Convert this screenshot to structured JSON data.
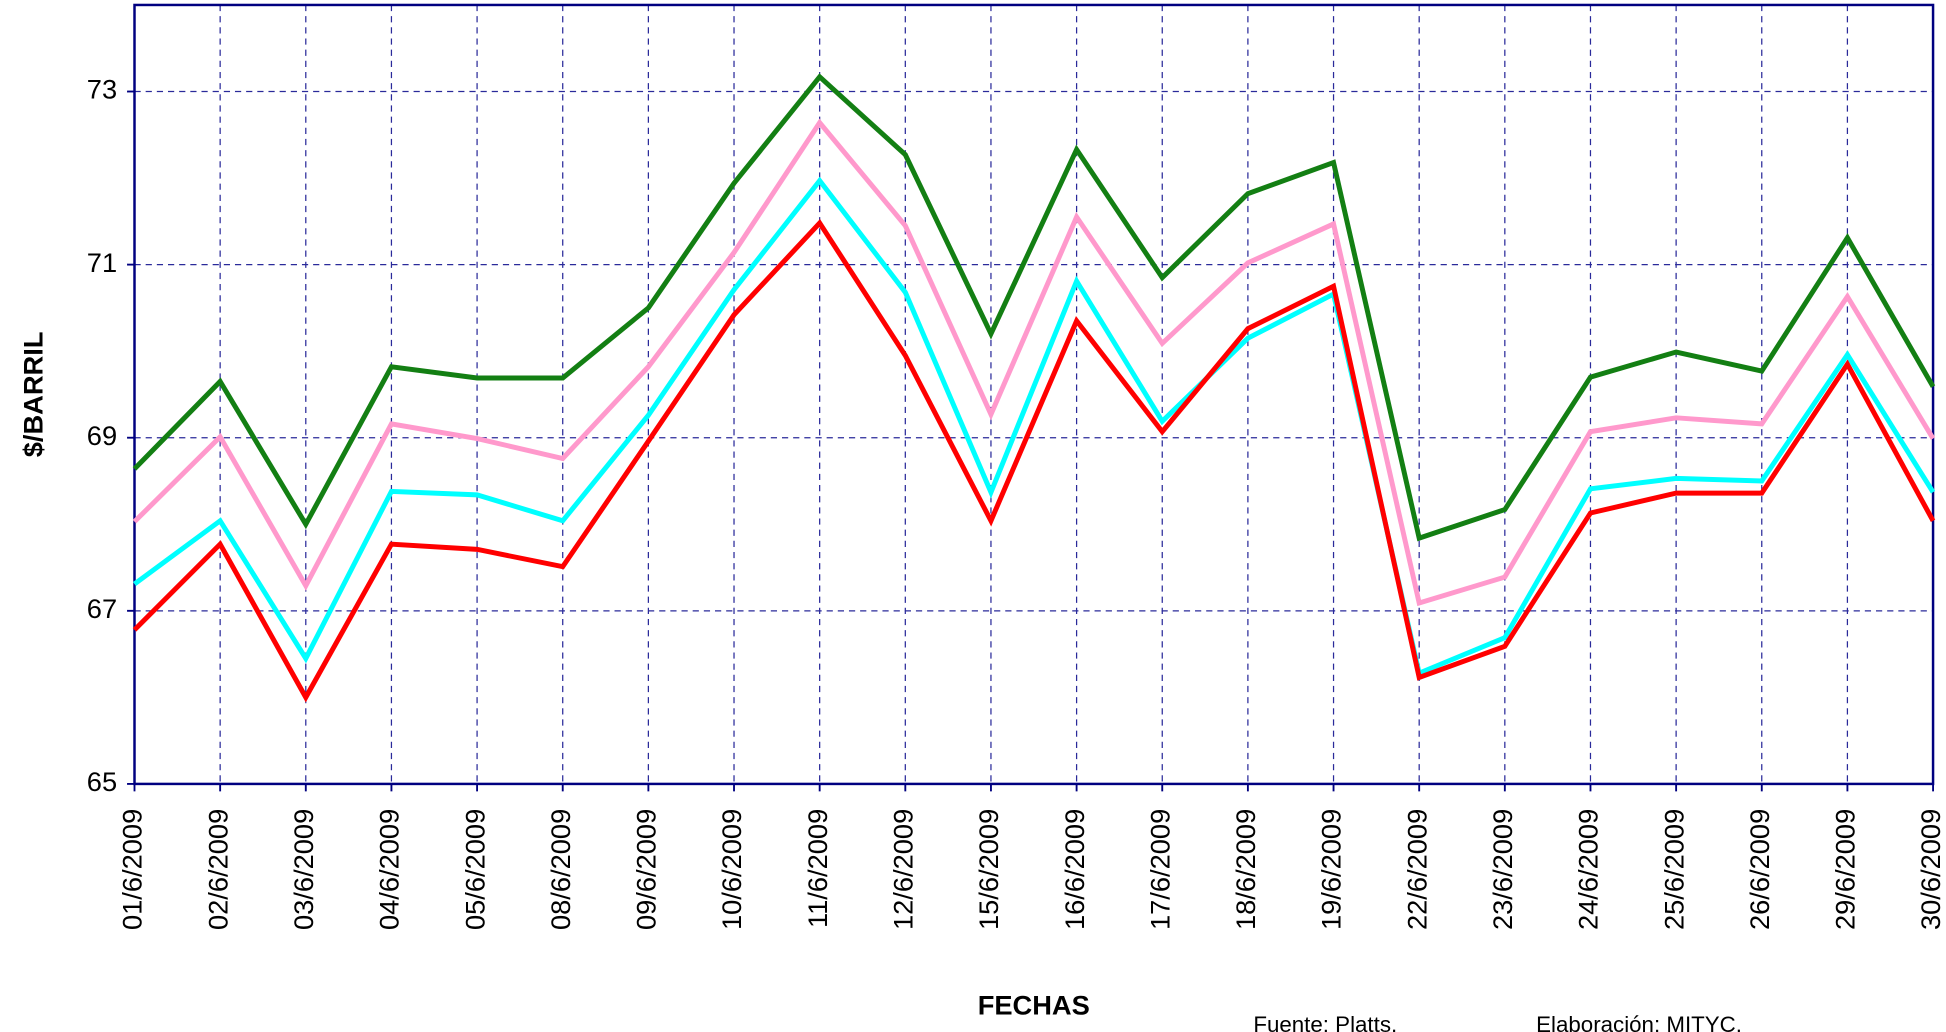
{
  "chart_data": {
    "type": "line",
    "y_label": "$/BARRIL",
    "x_label": "FECHAS",
    "annotations": [
      "Fuente: Platts.",
      "Elaboración: MITYC."
    ],
    "categories": [
      "01/6/2009",
      "02/6/2009",
      "03/6/2009",
      "04/6/2009",
      "05/6/2009",
      "08/6/2009",
      "09/6/2009",
      "10/6/2009",
      "11/6/2009",
      "12/6/2009",
      "15/6/2009",
      "16/6/2009",
      "17/6/2009",
      "18/6/2009",
      "19/6/2009",
      "22/6/2009",
      "23/6/2009",
      "24/6/2009",
      "25/6/2009",
      "26/6/2009",
      "29/6/2009",
      "30/6/2009"
    ],
    "series": [
      {
        "color": "#137f13",
        "values": [
          68.64,
          69.65,
          68.0,
          69.82,
          69.69,
          69.69,
          70.5,
          71.94,
          73.17,
          72.27,
          70.2,
          72.33,
          70.85,
          71.82,
          72.18,
          67.84,
          68.17,
          69.7,
          69.99,
          69.77,
          71.31,
          69.59
        ]
      },
      {
        "color": "#ff99cc",
        "values": [
          68.03,
          69.01,
          67.29,
          69.16,
          68.99,
          68.76,
          69.82,
          71.14,
          72.64,
          71.45,
          69.27,
          71.55,
          70.09,
          71.02,
          71.47,
          67.09,
          67.39,
          69.07,
          69.23,
          69.16,
          70.63,
          68.99
        ]
      },
      {
        "color": "#00ffff",
        "values": [
          67.31,
          68.04,
          66.45,
          68.38,
          68.34,
          68.04,
          69.26,
          70.71,
          71.97,
          70.68,
          68.37,
          70.81,
          69.19,
          70.15,
          70.66,
          66.28,
          66.69,
          68.41,
          68.53,
          68.5,
          69.96,
          68.37
        ]
      },
      {
        "color": "#ff0000",
        "values": [
          66.78,
          67.77,
          66.0,
          67.77,
          67.71,
          67.51,
          68.96,
          70.42,
          71.48,
          69.95,
          68.04,
          70.35,
          69.07,
          70.26,
          70.75,
          66.23,
          66.59,
          68.13,
          68.36,
          68.36,
          69.85,
          68.04
        ]
      }
    ],
    "ylim": [
      65,
      74
    ],
    "yticks": [
      65,
      67,
      69,
      71,
      73
    ],
    "grid": true
  }
}
